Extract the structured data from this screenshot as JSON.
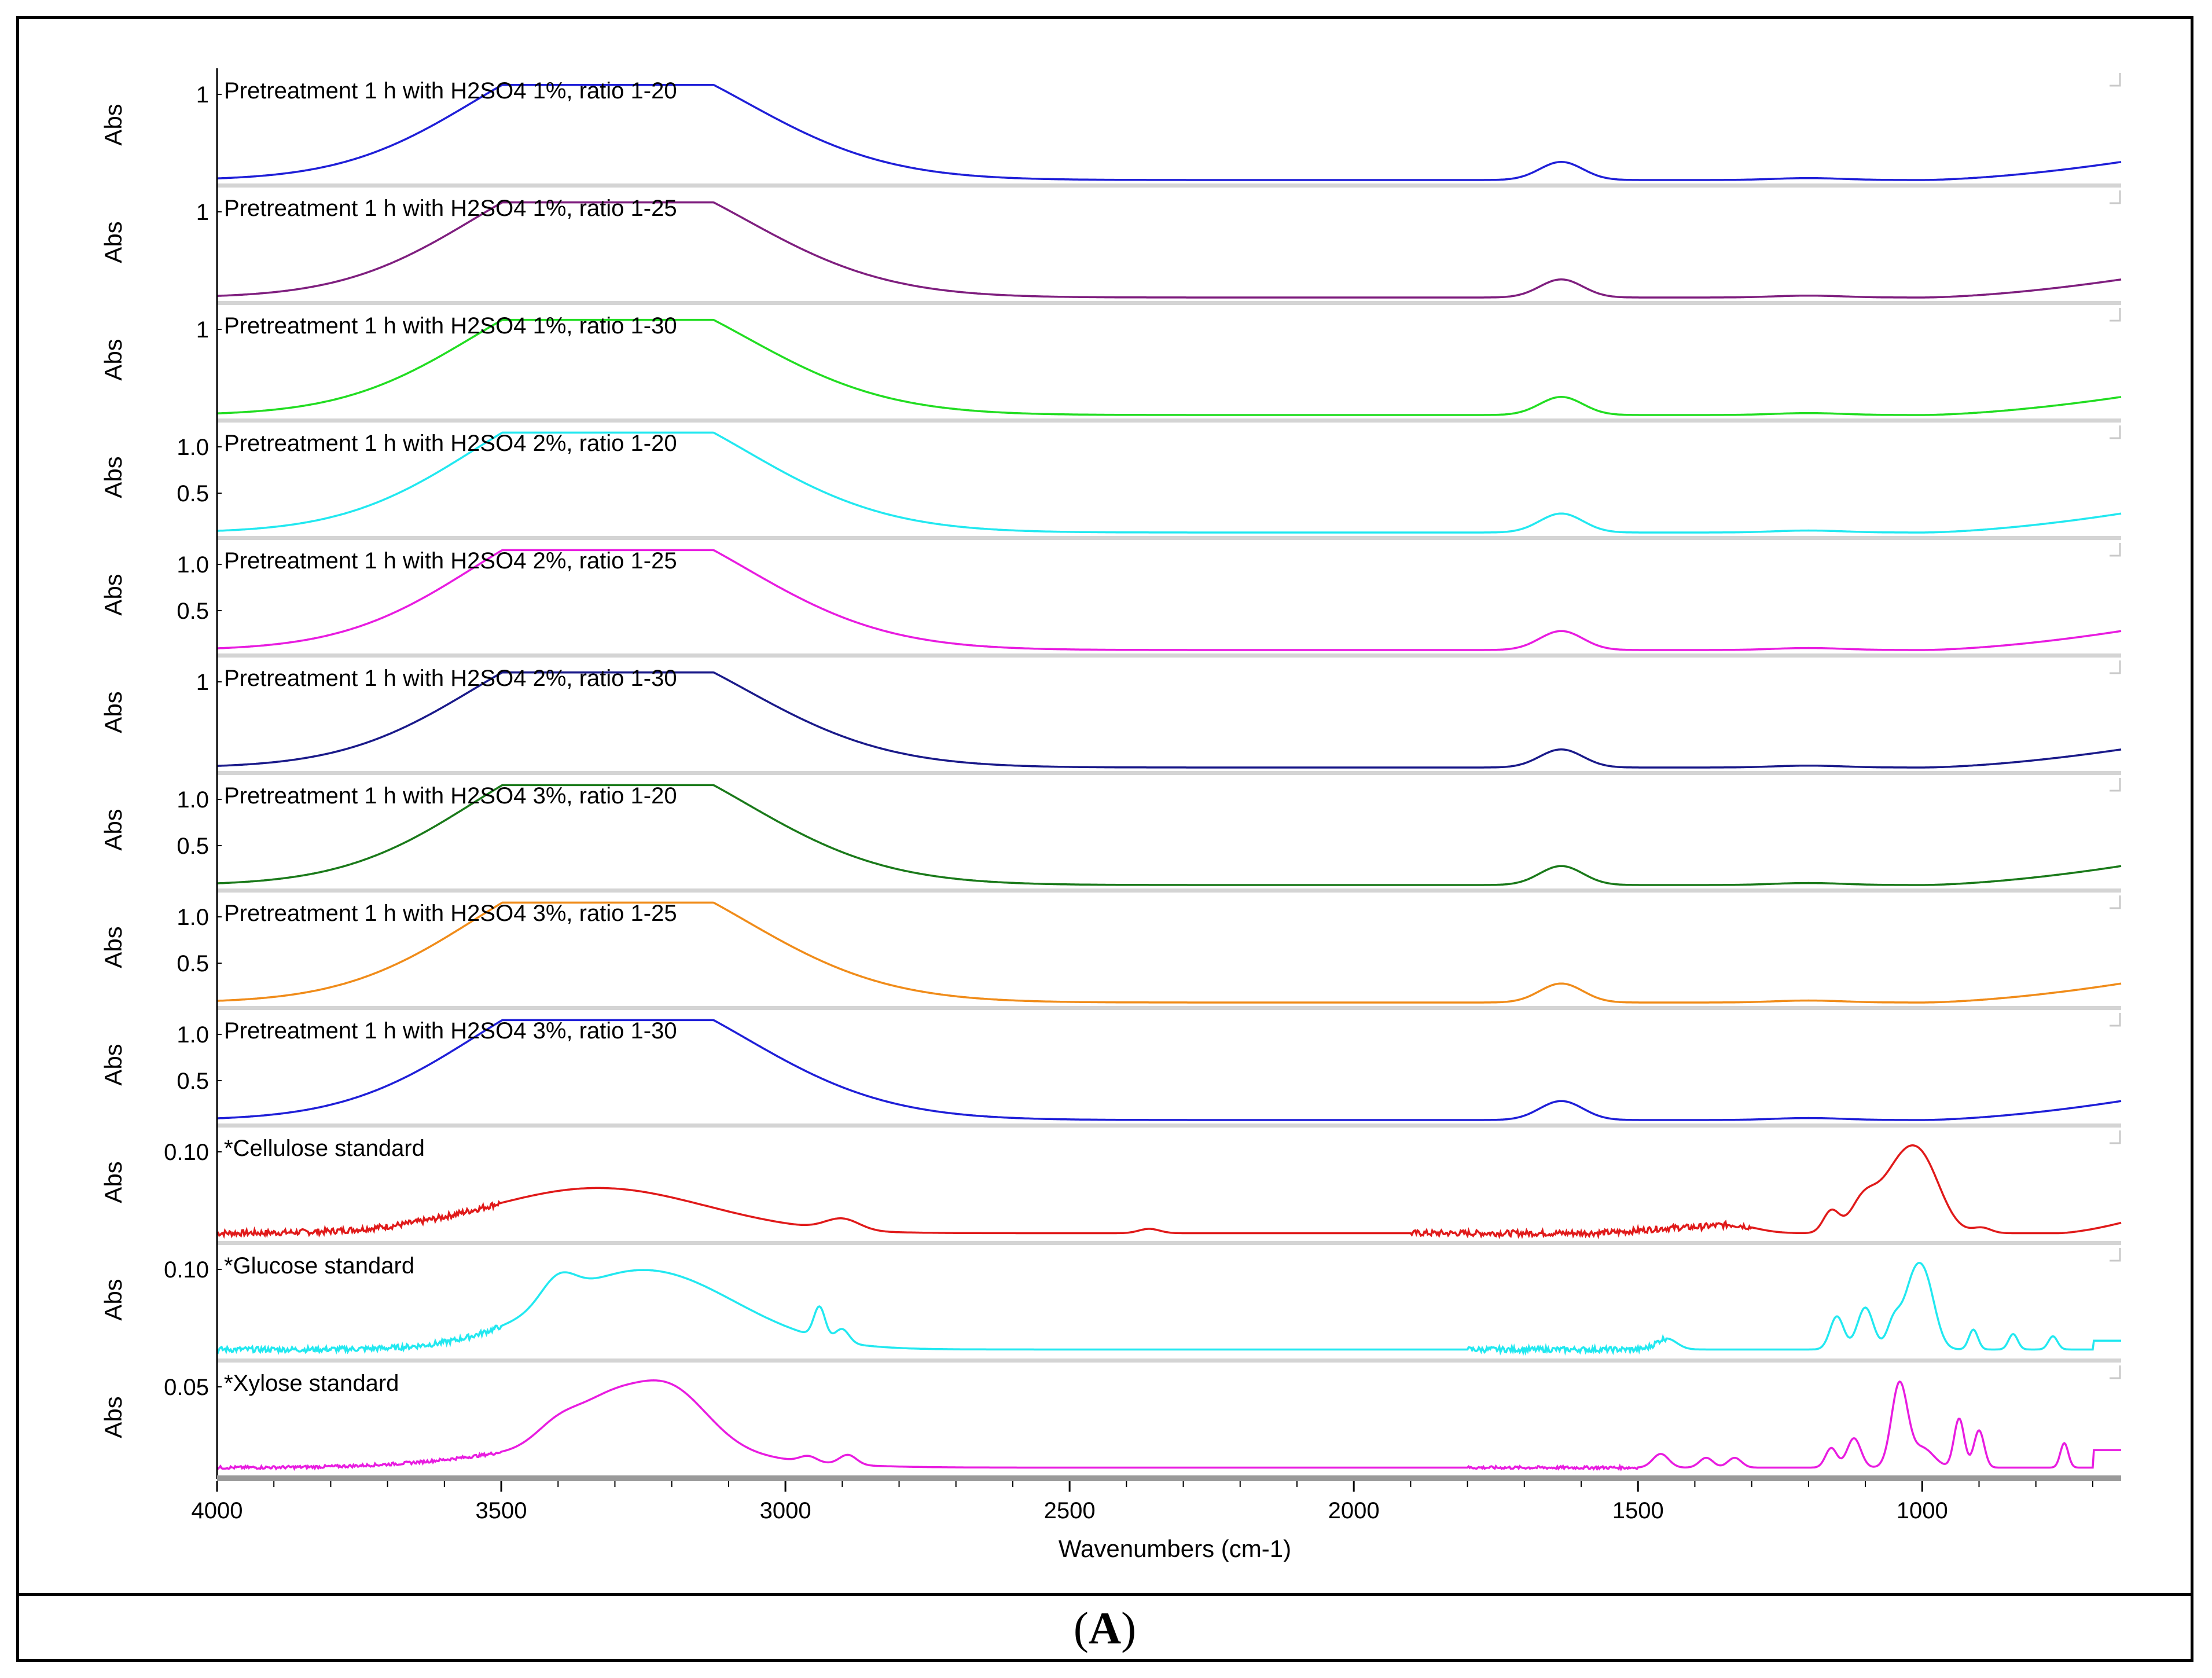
{
  "caption": {
    "open": "(",
    "letter": "A",
    "close": ")"
  },
  "chart_data": {
    "type": "line",
    "title": "",
    "xlabel": "Wavenumbers (cm-1)",
    "ylabel": "Abs",
    "xlim": [
      4000,
      650
    ],
    "x_ticks": [
      4000,
      3500,
      3000,
      2500,
      2000,
      1500,
      1000
    ],
    "series": [
      {
        "name": "Pretreatment 1 h with H2SO4 1%, ratio 1-20",
        "color": "#1f1fd8",
        "y_ticks": [
          "1"
        ],
        "kind": "pretreat",
        "scale": 1.0
      },
      {
        "name": "Pretreatment 1 h with H2SO4 1%, ratio 1-25",
        "color": "#7f1f7f",
        "y_ticks": [
          "1"
        ],
        "kind": "pretreat",
        "scale": 1.0
      },
      {
        "name": "Pretreatment 1 h with H2SO4 1%, ratio 1-30",
        "color": "#22dd22",
        "y_ticks": [
          "1"
        ],
        "kind": "pretreat",
        "scale": 1.0
      },
      {
        "name": "Pretreatment 1 h with H2SO4 2%, ratio 1-20",
        "color": "#22e8f0",
        "y_ticks": [
          "1.0",
          "0.5"
        ],
        "kind": "pretreat",
        "scale": 1.05
      },
      {
        "name": "Pretreatment 1 h with H2SO4 2%, ratio 1-25",
        "color": "#e81ce0",
        "y_ticks": [
          "1.0",
          "0.5"
        ],
        "kind": "pretreat",
        "scale": 1.05
      },
      {
        "name": "Pretreatment 1 h with H2SO4 2%, ratio 1-30",
        "color": "#1a1a8a",
        "y_ticks": [
          "1"
        ],
        "kind": "pretreat",
        "scale": 1.0
      },
      {
        "name": "Pretreatment 1 h with H2SO4 3%, ratio 1-20",
        "color": "#1a7a1a",
        "y_ticks": [
          "1.0",
          "0.5"
        ],
        "kind": "pretreat",
        "scale": 1.05
      },
      {
        "name": "Pretreatment 1 h with H2SO4 3%, ratio 1-25",
        "color": "#f08c1a",
        "y_ticks": [
          "1.0",
          "0.5"
        ],
        "kind": "pretreat",
        "scale": 1.05
      },
      {
        "name": "Pretreatment 1 h with H2SO4 3%, ratio 1-30",
        "color": "#1f1fd8",
        "y_ticks": [
          "1.0",
          "0.5"
        ],
        "kind": "pretreat",
        "scale": 1.05
      },
      {
        "name": "*Cellulose standard",
        "color": "#e01a1a",
        "y_ticks": [
          "0.10"
        ],
        "kind": "cellulose",
        "scale": 1.0
      },
      {
        "name": "*Glucose standard",
        "color": "#22e8f0",
        "y_ticks": [
          "0.10"
        ],
        "kind": "glucose",
        "scale": 1.0
      },
      {
        "name": "*Xylose standard",
        "color": "#e81ce0",
        "y_ticks": [
          "0.05"
        ],
        "kind": "xylose",
        "scale": 1.0
      }
    ],
    "peaks_cm1": {
      "pretreat": [
        3320,
        1635
      ],
      "cellulose": [
        3330,
        2900,
        1160,
        1105,
        1030,
        895
      ],
      "glucose": [
        3400,
        3250,
        2940,
        1150,
        1100,
        1020,
        995,
        910,
        840,
        770
      ],
      "xylose": [
        3400,
        3320,
        3210,
        2890,
        1460,
        1160,
        1120,
        1040,
        935,
        900,
        750,
        670
      ]
    }
  }
}
